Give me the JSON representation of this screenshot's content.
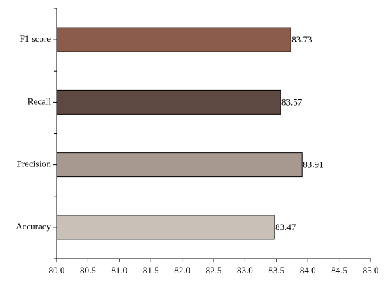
{
  "chart_data": {
    "type": "hbar",
    "categories": [
      "F1 score",
      "Recall",
      "Precision",
      "Accuracy"
    ],
    "values": [
      83.73,
      83.57,
      83.91,
      83.47
    ],
    "colors": [
      "#8b5c4c",
      "#5d4842",
      "#a79890",
      "#c9c0b7"
    ],
    "xlim": [
      80,
      85
    ],
    "xticks": [
      {
        "value": 80,
        "label": "80.0"
      },
      80.5,
      {
        "value": 81,
        "label": "81.0"
      },
      81.5,
      {
        "value": 82,
        "label": "82.0"
      },
      82.5,
      {
        "value": 83,
        "label": "83.0"
      },
      83.5,
      {
        "value": 84,
        "label": "84.0"
      },
      84.5,
      {
        "value": 85,
        "label": "85.0"
      }
    ],
    "data_labels": true
  }
}
